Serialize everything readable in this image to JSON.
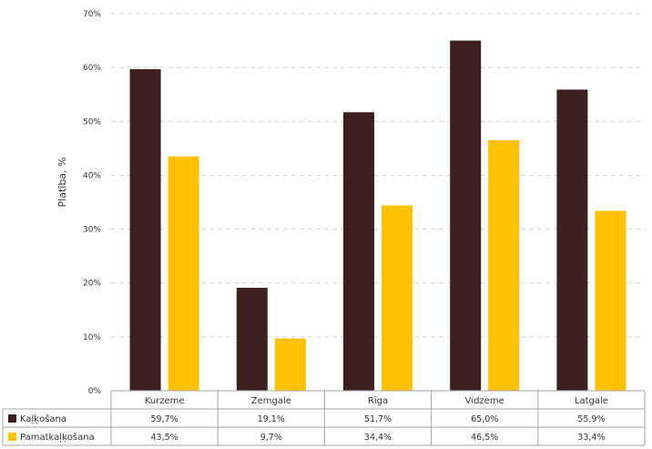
{
  "chart_data": {
    "type": "bar",
    "ylabel": "Platība, %",
    "xlabel": "",
    "ylim": [
      0,
      70
    ],
    "yticks": [
      "0%",
      "10%",
      "20%",
      "30%",
      "40%",
      "50%",
      "60%",
      "70%"
    ],
    "grid": true,
    "legend": "data-table-left",
    "categories": [
      "Kurzeme",
      "Zemgale",
      "Rīga",
      "Vidzeme",
      "Latgale"
    ],
    "series": [
      {
        "name": "Kaļķošana",
        "color": "#3d1f1f",
        "values": [
          59.7,
          19.1,
          51.7,
          65.0,
          55.9
        ],
        "labels": [
          "59,7%",
          "19,1%",
          "51,7%",
          "65,0%",
          "55,9%"
        ]
      },
      {
        "name": "Pamatkaļķošana",
        "color": "#ffc000",
        "values": [
          43.5,
          9.7,
          34.4,
          46.5,
          33.4
        ],
        "labels": [
          "43,5%",
          "9,7%",
          "34,4%",
          "46,5%",
          "33,4%"
        ]
      }
    ]
  }
}
